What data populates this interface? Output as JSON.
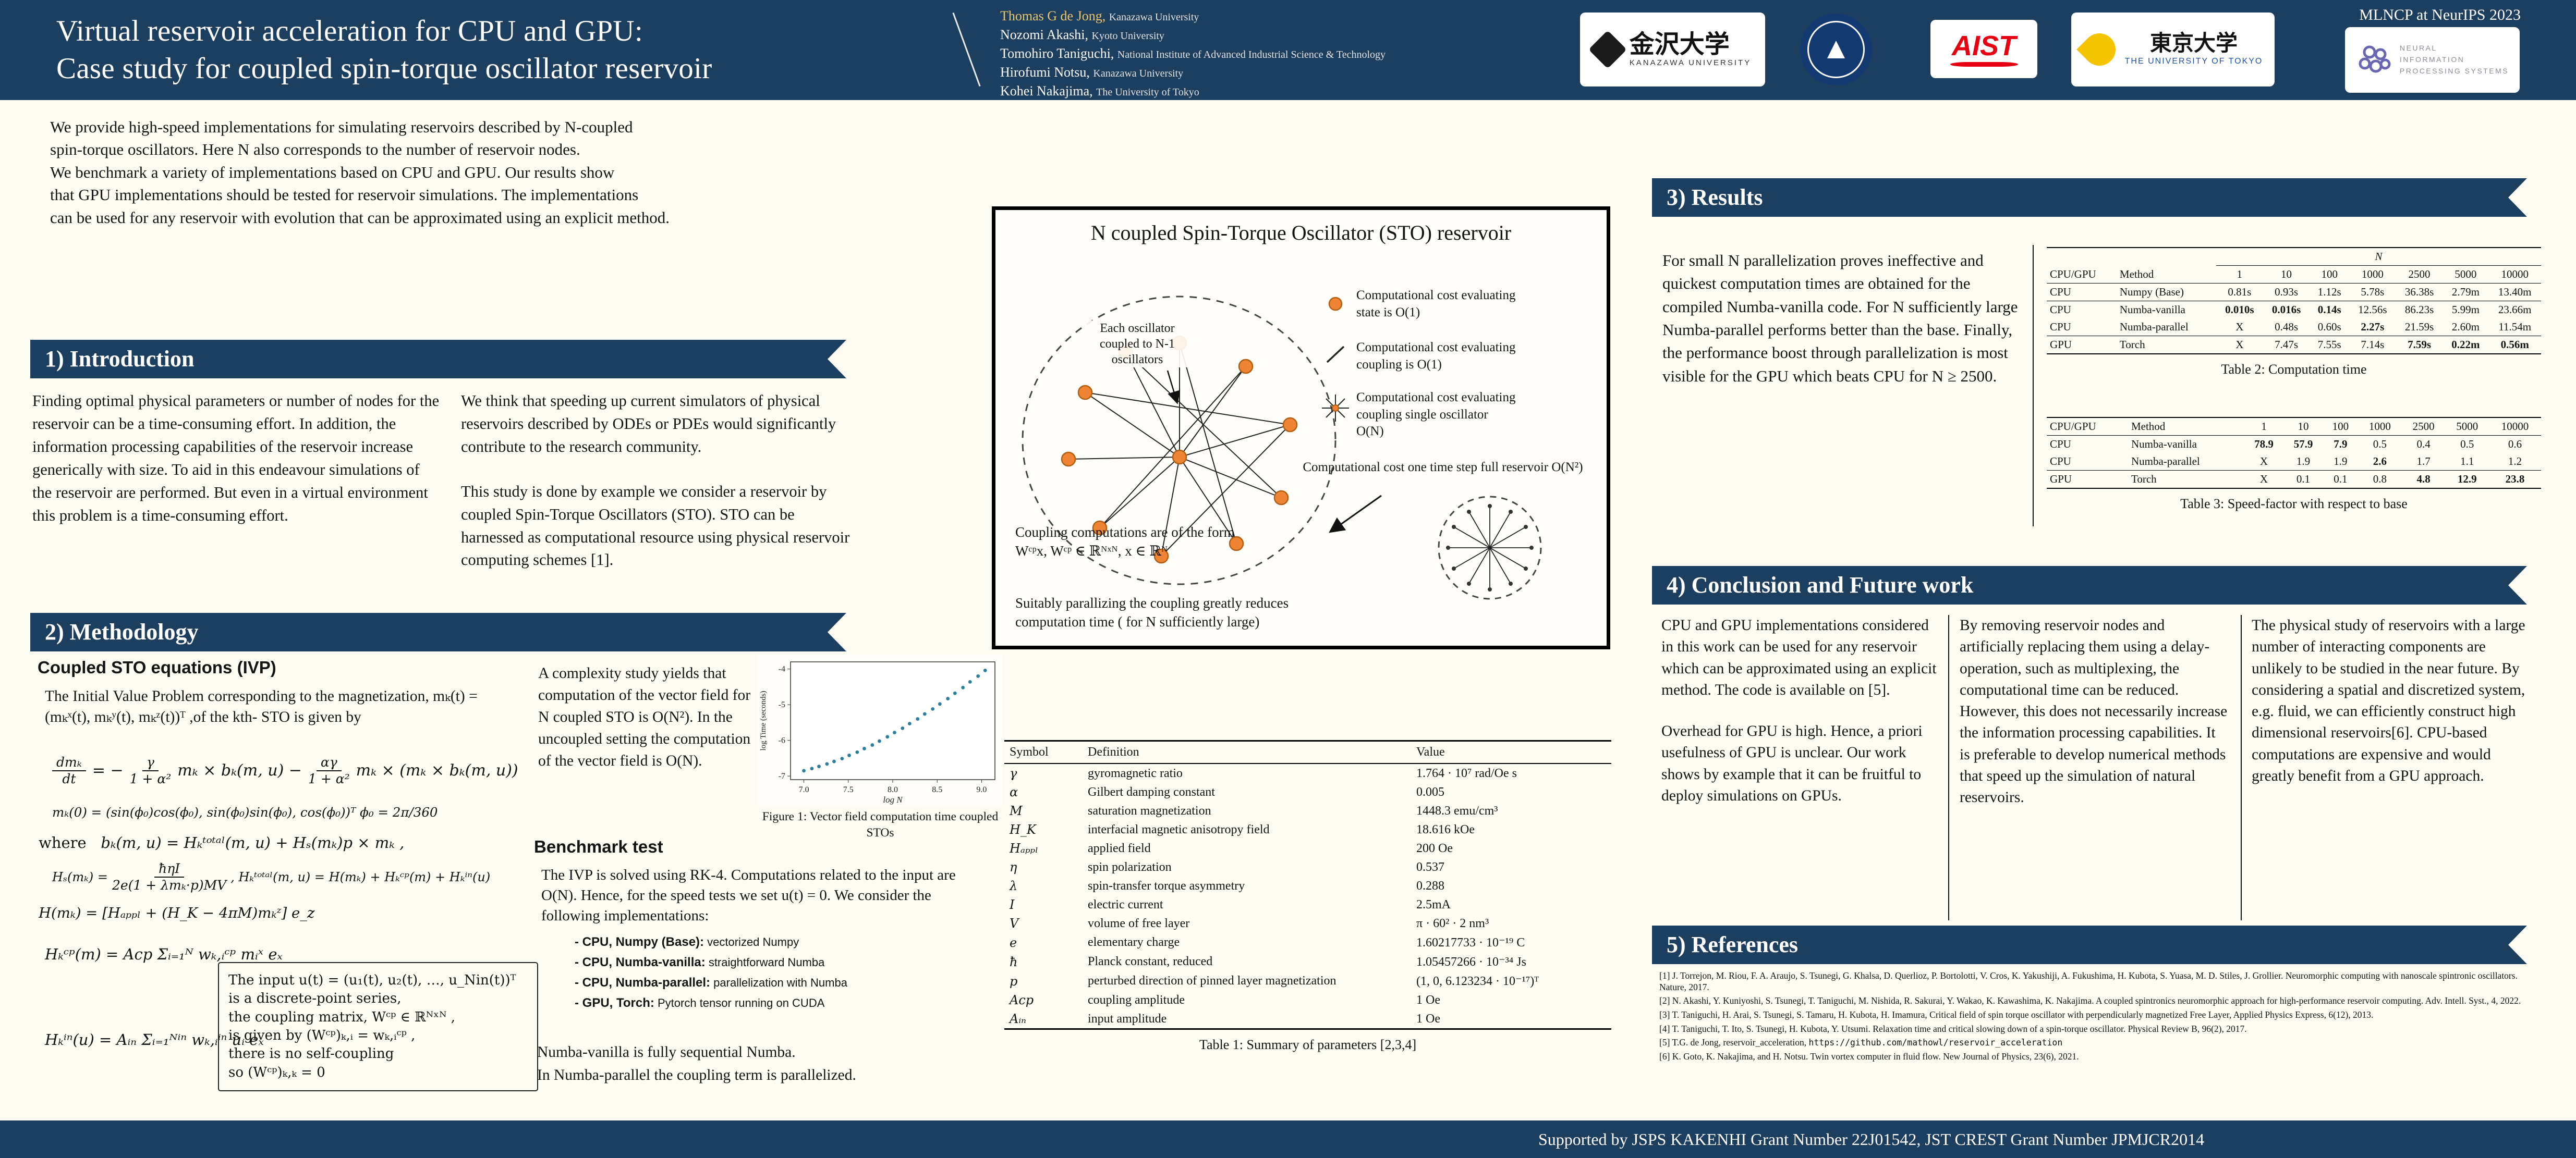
{
  "colors": {
    "navy": "#1d3f5f",
    "orange": "#ee8434",
    "cream": "#fdfcf2",
    "aist_red": "#e60012",
    "tokyo_blue": "#1e50a2",
    "neurips_purple": "#6b66b2"
  },
  "header": {
    "title_line1": "Virtual reservoir acceleration for CPU and GPU:",
    "title_line2": "Case study for coupled spin-torque oscillator reservoir",
    "conference": "MLNCP at NeurIPS 2023",
    "authors": [
      {
        "name": "Thomas G de Jong,",
        "affil": "Kanazawa University"
      },
      {
        "name": "Nozomi Akashi,",
        "affil": "Kyoto University"
      },
      {
        "name": "Tomohiro Taniguchi,",
        "affil": "National Institute of Advanced Industrial Science & Technology"
      },
      {
        "name": "Hirofumi Notsu,",
        "affil": "Kanazawa University"
      },
      {
        "name": "Kohei Nakajima,",
        "affil": "The University of Tokyo"
      }
    ],
    "logos": {
      "kanazawa_jp": "金沢大学",
      "kanazawa_en": "KANAZAWA UNIVERSITY",
      "aist": "AIST",
      "tokyo_jp": "東京大学",
      "tokyo_en": "THE UNIVERSITY OF TOKYO",
      "neurips_lines": [
        "NEURAL",
        "INFORMATION",
        "PROCESSING SYSTEMS"
      ]
    }
  },
  "abstract": {
    "lines": [
      "We provide high-speed implementations for simulating reservoirs described by N-coupled",
      "spin-torque oscillators. Here N also corresponds to the number of reservoir nodes.",
      "We benchmark a variety of implementations based on CPU and GPU. Our results show",
      "that GPU implementations should be tested for reservoir simulations. The implementations",
      "can be used for any reservoir with evolution that can be approximated using an explicit method."
    ]
  },
  "intro": {
    "heading": "1) Introduction",
    "col1": "Finding optimal physical parameters or number of nodes for the reservoir can be a time-consuming effort. In addition, the information processing capabilities of the reservoir increase generically with size. To aid in this endeavour simulations of the reservoir are performed. But even in a virtual environment this problem is a time-consuming effort.",
    "col2_p1": "We think that speeding up current simulators of physical reservoirs described by ODEs or PDEs would significantly contribute to the research community.",
    "col2_p2": "This study is done by example we consider a reservoir by coupled Spin-Torque Oscillators (STO). STO can be harnessed as computational resource using physical reservoir computing schemes [1]."
  },
  "methodology": {
    "heading": "2) Methodology",
    "sub1": "Coupled STO equations (IVP)",
    "p1": "The Initial Value Problem  corresponding to the magnetization, mₖ(t) = (mₖˣ(t), mₖʸ(t), mₖᶻ(t))ᵀ ,of the kth- STO is given by",
    "eq": {
      "lhs_num": "dmₖ",
      "lhs_den": "dt",
      "eq1": "= −",
      "f1_num": "γ",
      "f1_den": "1 + α²",
      "mid": "mₖ × bₖ(m, u)  −",
      "f2_num": "αγ",
      "f2_den": "1 + α²",
      "tail": "mₖ × (mₖ × bₖ(m, u))"
    },
    "eq_ic": "mₖ(0) = (sin(ϕ₀)cos(ϕ₀), sin(ϕ₀)sin(ϕ₀), cos(ϕ₀))ᵀ        ϕ₀ = 2π/360",
    "eq_where_pre": "where",
    "eq_where": "bₖ(m, u) = Hₖᵗᵒᵗᵃˡ(m, u) + Hₛ(mₖ)p × mₖ ,",
    "hs_pre": "Hₛ(mₖ) = ",
    "hs_num": "ħηI",
    "hs_den": "2e(1 + λmₖ·p)MV",
    "hs_post": " ,     Hₖᵗᵒᵗᵃˡ(m, u) = H(mₖ) + Hₖᶜᵖ(m) + Hₖⁱⁿ(u)",
    "eq_h": "H(mₖ) = [Hₐₚₚₗ + (H_K − 4πM)mₖᶻ] e_z",
    "eq_hcp": "Hₖᶜᵖ(m) = Acp Σᵢ₌₁ᴺ  wₖ,ᵢᶜᵖ mᵢˣ eₓ",
    "eq_hin": "Hₖⁱⁿ(u) = Aᵢₙ Σᵢ₌₁ᴺⁱⁿ  wₖ,ᵢⁱⁿ uᵢ eₓ",
    "note_lines": [
      "The input u(t) = (u₁(t), u₂(t), …, u_Nin(t))ᵀ",
      "is a discrete-point series,",
      "the coupling matrix, Wᶜᵖ ∈ ℝᴺˣᴺ ,",
      "is given by (Wᶜᵖ)ₖ,ᵢ = wₖ,ᵢᶜᵖ ,",
      "there is no self-coupling",
      "so (Wᶜᵖ)ₖ,ₖ = 0"
    ],
    "complexity": "A complexity study yields that computation of the vector field for N coupled STO is O(N²). In the uncoupled setting the computation of the vector field is O(N).",
    "fig_caption": "Figure 1: Vector field computation time coupled STOs",
    "bench_heading": "Benchmark test",
    "bench_p": "The IVP is solved using RK-4. Computations related to the input are O(N). Hence, for the speed tests we set u(t) = 0. We consider the following implementations:",
    "bullets": [
      {
        "b": "-  CPU, Numpy (Base):",
        "r": "  vectorized Numpy"
      },
      {
        "b": "-  CPU, Numba-vanilla:",
        "r": "  straightforward Numba"
      },
      {
        "b": "-  CPU, Numba-parallel:",
        "r": "  parallelization with Numba"
      },
      {
        "b": "-  GPU, Torch:",
        "r": "  Pytorch tensor running on CUDA"
      }
    ],
    "tail1": "Numba-vanilla is fully sequential Numba.",
    "tail2": "In Numba-parallel the coupling term is parallelized."
  },
  "diagram": {
    "title": "N coupled Spin-Torque Oscillator (STO) reservoir",
    "each_label": "Each oscillator coupled to N-1 oscillators",
    "ann1": "Computational cost evaluating state is O(1)",
    "ann2": "Computational cost evaluating coupling is O(1)",
    "ann3": "Computational cost evaluating coupling single oscillator O(N)",
    "ann4": "Computational cost one time step full reservoir O(N²)",
    "coupling": "Coupling computations are of the form Wᶜᵖx,   Wᶜᵖ ∈ ℝᴺˣᴺ,   x ∈ ℝᴺ",
    "bottom": "Suitably parallizing the coupling greatly reduces computation time ( for N sufficiently large)"
  },
  "table1": {
    "caption": "Table 1: Summary of parameters [2,3,4]",
    "headers": [
      "Symbol",
      "Definition",
      "Value"
    ],
    "rows": [
      {
        "sym": "γ",
        "def": "gyromagnetic ratio",
        "val": "1.764 · 10⁷ rad/Oe s"
      },
      {
        "sym": "α",
        "def": "Gilbert damping constant",
        "val": "0.005"
      },
      {
        "sym": "M",
        "def": "saturation magnetization",
        "val": "1448.3 emu/cm³"
      },
      {
        "sym": "H_K",
        "def": "interfacial magnetic anisotropy field",
        "val": "18.616 kOe"
      },
      {
        "sym": "Hₐₚₚₗ",
        "def": "applied field",
        "val": "200 Oe"
      },
      {
        "sym": "η",
        "def": "spin polarization",
        "val": "0.537"
      },
      {
        "sym": "λ",
        "def": "spin-transfer torque asymmetry",
        "val": "0.288"
      },
      {
        "sym": "I",
        "def": "electric current",
        "val": "2.5mA"
      },
      {
        "sym": "V",
        "def": "volume of free layer",
        "val": "π · 60² · 2 nm³"
      },
      {
        "sym": "e",
        "def": "elementary charge",
        "val": "1.60217733 · 10⁻¹⁹ C"
      },
      {
        "sym": "ħ",
        "def": "Planck constant, reduced",
        "val": "1.05457266 · 10⁻³⁴ Js"
      },
      {
        "sym": "p",
        "def": "perturbed direction of pinned layer magnetization",
        "val": "(1, 0, 6.123234 · 10⁻¹⁷)ᵀ"
      },
      {
        "sym": "Acp",
        "def": "coupling amplitude",
        "val": "1 Oe"
      },
      {
        "sym": "Aᵢₙ",
        "def": "input amplitude",
        "val": "1 Oe"
      }
    ]
  },
  "results": {
    "heading": "3) Results",
    "text": "For small N parallelization proves ineffective and quickest computation times are obtained for the compiled Numba-vanilla code. For N sufficiently large Numba-parallel performs better than the base. Finally, the performance boost through parallelization is most visible for the GPU which beats CPU for N ≥ 2500."
  },
  "table2": {
    "caption": "Table 2: Computation time",
    "n_label": "N",
    "headers": [
      "CPU/GPU",
      "Method",
      "1",
      "10",
      "100",
      "1000",
      "2500",
      "5000",
      "10000"
    ],
    "rows": [
      {
        "cls": "",
        "cells": [
          "CPU",
          "Numpy (Base)",
          "0.81s",
          "0.93s",
          "1.12s",
          "5.78s",
          "36.38s",
          "2.79m",
          "13.40m"
        ]
      },
      {
        "cls": "rt",
        "cells": [
          "CPU",
          "Numba-vanilla",
          {
            "t": "0.010s",
            "b": 1
          },
          {
            "t": "0.016s",
            "b": 1
          },
          {
            "t": "0.14s",
            "b": 1
          },
          "12.56s",
          "86.23s",
          "5.99m",
          "23.66m"
        ]
      },
      {
        "cls": "",
        "cells": [
          "CPU",
          "Numba-parallel",
          "X",
          "0.48s",
          "0.60s",
          {
            "t": "2.27s",
            "b": 1
          },
          "21.59s",
          "2.60m",
          "11.54m"
        ]
      },
      {
        "cls": "rt",
        "cells": [
          "GPU",
          "Torch",
          "X",
          "7.47s",
          "7.55s",
          "7.14s",
          {
            "t": "7.59s",
            "b": 1
          },
          {
            "t": "0.22m",
            "b": 1
          },
          {
            "t": "0.56m",
            "b": 1
          }
        ]
      }
    ]
  },
  "table3": {
    "caption": "Table 3: Speed-factor with respect to base",
    "headers": [
      "CPU/GPU",
      "Method",
      "1",
      "10",
      "100",
      "1000",
      "2500",
      "5000",
      "10000"
    ],
    "rows": [
      {
        "cls": "",
        "cells": [
          "CPU",
          "Numba-vanilla",
          {
            "t": "78.9",
            "b": 1
          },
          {
            "t": "57.9",
            "b": 1
          },
          {
            "t": "7.9",
            "b": 1
          },
          "0.5",
          "0.4",
          "0.5",
          "0.6"
        ]
      },
      {
        "cls": "",
        "cells": [
          "CPU",
          "Numba-parallel",
          "X",
          "1.9",
          "1.9",
          {
            "t": "2.6",
            "b": 1
          },
          "1.7",
          "1.1",
          "1.2"
        ]
      },
      {
        "cls": "rt",
        "cells": [
          "GPU",
          "Torch",
          "X",
          "0.1",
          "0.1",
          "0.8",
          {
            "t": "4.8",
            "b": 1
          },
          {
            "t": "12.9",
            "b": 1
          },
          {
            "t": "23.8",
            "b": 1
          }
        ]
      }
    ]
  },
  "conclusion": {
    "heading": "4) Conclusion and Future work",
    "col1_p1": "CPU and GPU implementations considered in this work can be used for any reservoir which can be approximated using an explicit method. The code is available on [5].",
    "col1_p2": "Overhead for GPU is high. Hence, a priori usefulness of GPU is unclear. Our work shows by example that it can be fruitful to deploy simulations on GPUs.",
    "col2": "By removing reservoir nodes and artificially replacing them using a delay-operation, such as multiplexing, the computational time can be reduced.  However, this does not necessarily increase the information processing capabilities. It is preferable to develop numerical methods that speed up the simulation of natural reservoirs.",
    "col3": "The physical study of reservoirs with a large number of interacting components are unlikely to be studied in the near future. By considering a spatial and discretized system, e.g. fluid, we can efficiently construct high dimensional reservoirs[6]. CPU-based computations are expensive and would greatly benefit from a GPU approach."
  },
  "references": {
    "heading": "5) References",
    "items": [
      {
        "t": "[1] J. Torrejon, M. Riou, F. A. Araujo, S. Tsunegi, G. Khalsa, D. Querlioz, P. Bortolotti, V. Cros, K. Yakushiji, A. Fukushima, H. Kubota, S. Yuasa, M. D. Stiles, J. Grollier. Neuromorphic computing with nanoscale spintronic oscillators. Nature, 2017.",
        "m": ""
      },
      {
        "t": "[2] N. Akashi, Y. Kuniyoshi, S. Tsunegi, T. Taniguchi, M. Nishida, R. Sakurai, Y. Wakao, K. Kawashima, K. Nakajima. A coupled spintronics neuromorphic approach for high-performance reservoir computing. Adv. Intell. Syst., 4, 2022.",
        "m": ""
      },
      {
        "t": "[3] T. Taniguchi, H. Arai, S. Tsunegi, S. Tamaru, H. Kubota, H. Imamura, Critical field of spin torque oscillator with perpendicularly magnetized Free Layer, Applied Physics Express, 6(12), 2013.",
        "m": ""
      },
      {
        "t": "[4] T. Taniguchi, T. Ito, S. Tsunegi, H. Kubota,  Y. Utsumi. Relaxation time and critical slowing down of a spin-torque oscillator. Physical Review B, 96(2), 2017.",
        "m": ""
      },
      {
        "t": "[5] T.G. de Jong, reservoir_acceleration, ",
        "m": "https://github.com/mathowl/reservoir_acceleration"
      },
      {
        "t": "[6] K. Goto, K. Nakajima, and H. Notsu. Twin vortex computer in fluid flow. New Journal of Physics, 23(6), 2021.",
        "m": ""
      }
    ]
  },
  "footer": {
    "text": "Supported by  JSPS KAKENHI Grant Number 22J01542, JST CREST Grant Number JPMJCR2014"
  },
  "chart_data": {
    "type": "scatter",
    "title": "Figure 1: Vector field computation time coupled STOs",
    "xlabel": "log N",
    "ylabel": "log Time (seconds)",
    "xlim": [
      6.85,
      9.15
    ],
    "ylim": [
      -7.1,
      -3.8
    ],
    "xticks": [
      7.0,
      7.5,
      8.0,
      8.5,
      9.0
    ],
    "yticks": [
      -7,
      -6,
      -5,
      -4
    ],
    "x": [
      7.0,
      7.09,
      7.17,
      7.26,
      7.34,
      7.43,
      7.51,
      7.6,
      7.68,
      7.77,
      7.85,
      7.94,
      8.02,
      8.11,
      8.19,
      8.28,
      8.36,
      8.45,
      8.53,
      8.62,
      8.7,
      8.79,
      8.87,
      8.96,
      9.04
    ],
    "y": [
      -6.85,
      -6.79,
      -6.73,
      -6.66,
      -6.59,
      -6.51,
      -6.42,
      -6.33,
      -6.23,
      -6.13,
      -6.02,
      -5.9,
      -5.78,
      -5.66,
      -5.53,
      -5.4,
      -5.26,
      -5.12,
      -4.98,
      -4.83,
      -4.68,
      -4.52,
      -4.36,
      -4.2,
      -4.04
    ]
  }
}
